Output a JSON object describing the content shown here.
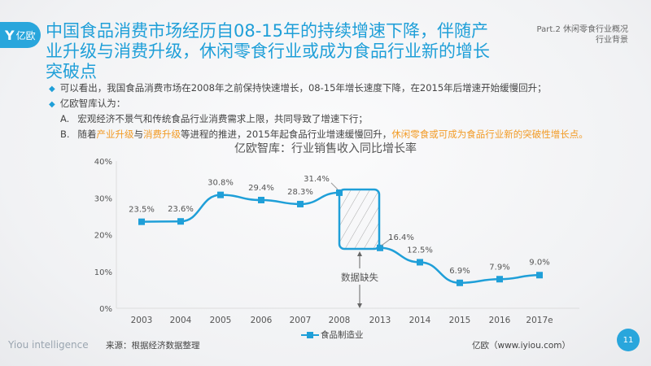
{
  "logo": {
    "text": "亿欧",
    "icon": "y-logo-icon"
  },
  "title": "中国食品消费市场经历自08-15年的持续增速下降，伴随产业升级与消费升级，休闲零食行业或成为食品行业新的增长突破点",
  "section": {
    "line1": "Part.2 休闲零食行业概况",
    "line2": "行业背景"
  },
  "bullets": {
    "b1": "可以看出，我国食品消费市场在2008年之前保持快速增长，08-15年增长速度下降，在2015年后增速开始缓慢回升；",
    "b2": "亿欧智库认为：",
    "a_label": "A.",
    "a_text": "宏观经济不景气和传统食品行业消费需求上限，共同导致了增速下行；",
    "b_label": "B.",
    "b_t1": "随着",
    "b_h1": "产业升级",
    "b_t2": "与",
    "b_h2": "消费升级",
    "b_t3": "等进程的推进，2015年起食品行业增速缓慢回升，",
    "b_h3": "休闲零食或可成为食品行业新的突破性增长点。"
  },
  "chart_data": {
    "type": "line",
    "title": "亿欧智库：行业销售收入同比增长率",
    "categories": [
      "2003",
      "2004",
      "2005",
      "2006",
      "2007",
      "2008",
      "2013",
      "2014",
      "2015",
      "2016",
      "2017e"
    ],
    "series": [
      {
        "name": "食品制造业",
        "values": [
          23.5,
          23.6,
          30.8,
          29.4,
          28.3,
          31.4,
          16.4,
          12.5,
          6.9,
          7.9,
          9.0
        ],
        "color": "#1f9fd8"
      }
    ],
    "labels": [
      "23.5%",
      "23.6%",
      "30.8%",
      "29.4%",
      "28.3%",
      "31.4%",
      "16.4%",
      "12.5%",
      "6.9%",
      "7.9%",
      "9.0%"
    ],
    "yticks": [
      "0%",
      "10%",
      "20%",
      "30%",
      "40%"
    ],
    "ylim": [
      0,
      40
    ],
    "annotation": "数据缺失",
    "legend": "bottom"
  },
  "footer": {
    "brand": "Yiou intelligence",
    "source": "来源：根据经济数据整理",
    "site": "亿欧（www.iyiou.com）",
    "page": "11"
  }
}
